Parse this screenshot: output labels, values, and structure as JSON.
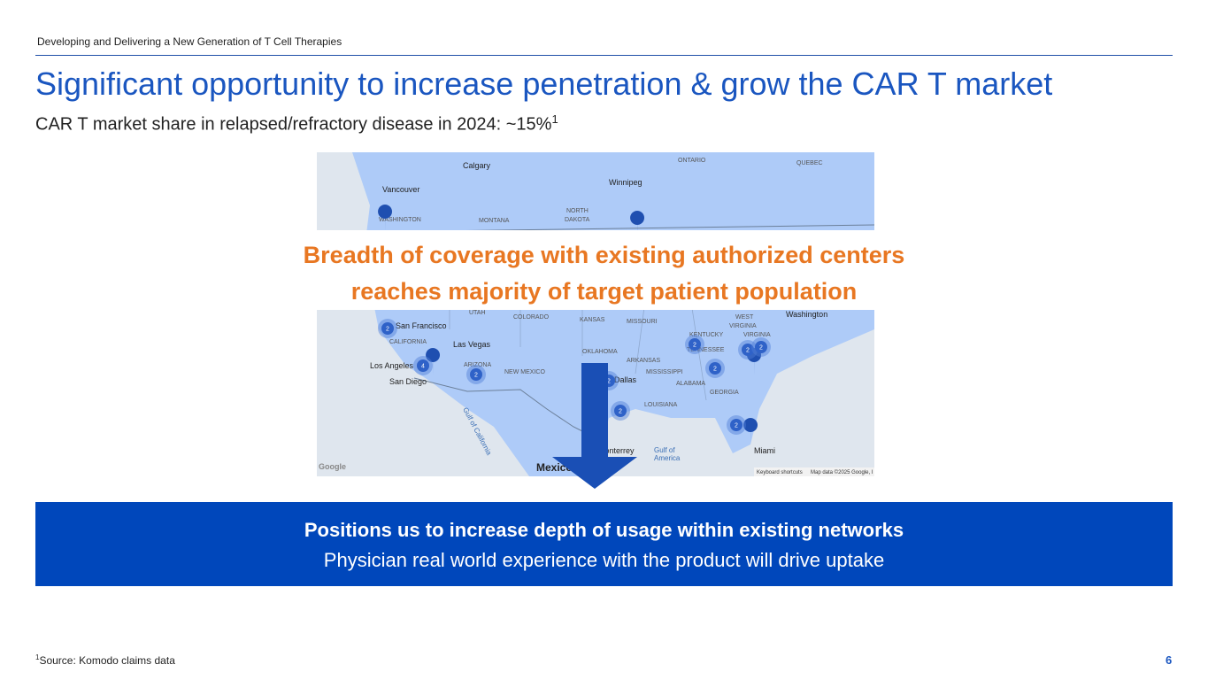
{
  "header": {
    "tagline": "Developing and Delivering a New Generation of T Cell Therapies",
    "title": "Significant opportunity to increase penetration & grow the CAR T market",
    "subtitle": "CAR T market share in relapsed/refractory disease in 2024: ~15%",
    "subtitle_footnote": "1"
  },
  "map": {
    "labels": [
      "Calgary",
      "Winnipeg",
      "ONTARIO",
      "QUEBEC",
      "Vancouver",
      "WASHINGTON",
      "MONTANA",
      "NORTH",
      "DAKOTA",
      "UTAH",
      "COLORADO",
      "KANSAS",
      "MISSOURI",
      "WEST",
      "VIRGINIA",
      "Washington",
      "San Francisco",
      "CALIFORNIA",
      "Las Vegas",
      "KENTUCKY",
      "VIRGINIA",
      "ARIZONA",
      "OKLAHOMA",
      "ARKANSAS",
      "TENNESSEE",
      "Los Angeles",
      "NEW MEXICO",
      "MISSISSIPPI",
      "San Diego",
      "Dallas",
      "ALABAMA",
      "GEORGIA",
      "LOUISIANA",
      "Gulf of California",
      "Monterrey",
      "Gulf of",
      "America",
      "Mexico",
      "Miami"
    ],
    "clusters": [
      "2",
      "4",
      "2",
      "2",
      "2",
      "2",
      "2",
      "2",
      "2",
      "2"
    ],
    "attribution": {
      "logo": "Google",
      "shortcuts": "Keyboard shortcuts",
      "data": "Map data ©2025 Google, I"
    }
  },
  "callout": {
    "line1": "Breadth of coverage with existing authorized centers",
    "line2": "reaches majority of target patient population"
  },
  "banner": {
    "line1": "Positions us to increase depth of usage within existing networks",
    "line2": "Physician real world experience with the product will drive uptake"
  },
  "footer": {
    "footnote_marker": "1",
    "source": "Source: Komodo claims data",
    "page": "6"
  }
}
